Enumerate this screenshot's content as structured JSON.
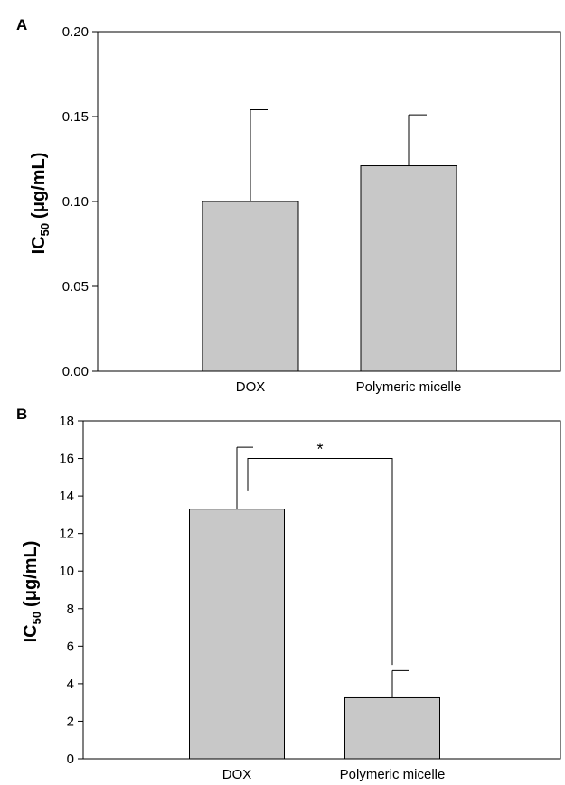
{
  "chart_data": [
    {
      "panel": "A",
      "type": "bar",
      "categories": [
        "DOX",
        "Polymeric micelle"
      ],
      "values": [
        0.1,
        0.121
      ],
      "error_upper": [
        0.154,
        0.151
      ],
      "ylabel": "IC",
      "ylabel_sub": "50",
      "ylabel_unit": "(μg/mL)",
      "ylim": [
        0,
        0.2
      ],
      "yticks": [
        "0.00",
        "0.05",
        "0.10",
        "0.15",
        "0.20"
      ],
      "bar_color": "#c8c8c8",
      "annotations": []
    },
    {
      "panel": "B",
      "type": "bar",
      "categories": [
        "DOX",
        "Polymeric micelle"
      ],
      "values": [
        13.3,
        3.25
      ],
      "error_upper": [
        16.6,
        4.7
      ],
      "ylabel": "IC",
      "ylabel_sub": "50",
      "ylabel_unit": "(μg/mL)",
      "ylim": [
        0,
        18
      ],
      "yticks": [
        "0",
        "2",
        "4",
        "6",
        "8",
        "10",
        "12",
        "14",
        "16",
        "18"
      ],
      "bar_color": "#c8c8c8",
      "annotations": [
        "*"
      ]
    }
  ]
}
